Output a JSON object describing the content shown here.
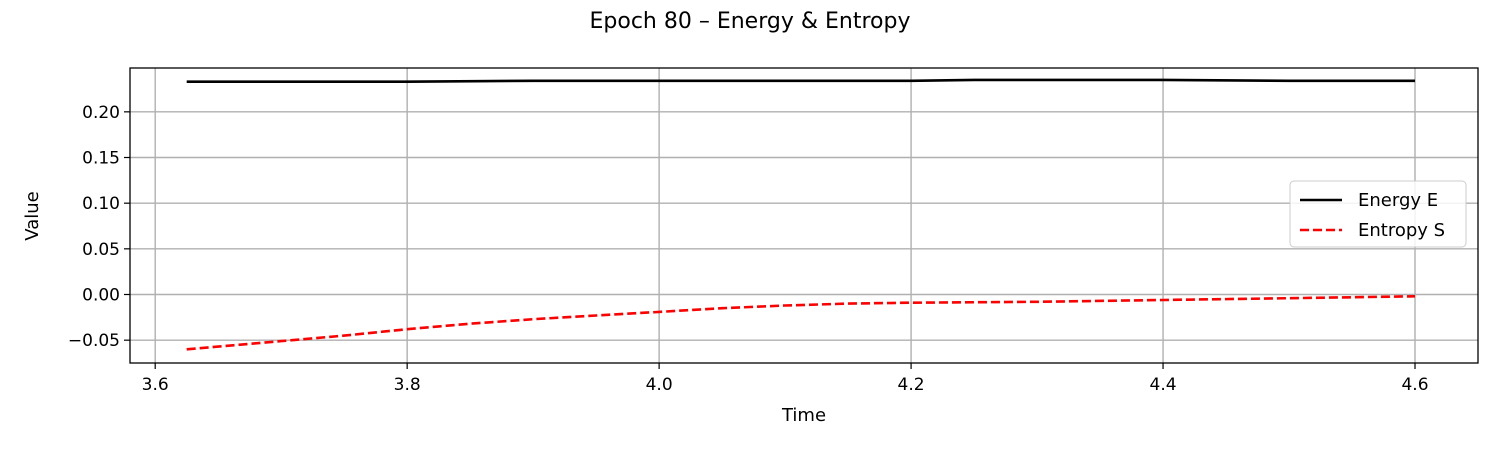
{
  "chart_data": {
    "type": "line",
    "title": "Epoch 80 – Energy & Entropy",
    "xlabel": "Time",
    "ylabel": "Value",
    "xlim": [
      3.58,
      4.65
    ],
    "ylim": [
      -0.075,
      0.248
    ],
    "xticks": [
      3.6,
      3.8,
      4.0,
      4.2,
      4.4,
      4.6
    ],
    "xtick_labels": [
      "3.6",
      "3.8",
      "4.0",
      "4.2",
      "4.4",
      "4.6"
    ],
    "yticks": [
      -0.05,
      0.0,
      0.05,
      0.1,
      0.15,
      0.2
    ],
    "ytick_labels": [
      "−0.05",
      "0.00",
      "0.05",
      "0.10",
      "0.15",
      "0.20"
    ],
    "grid": true,
    "legend_position": "center-right",
    "series": [
      {
        "name": "Energy E",
        "color": "#000000",
        "style": "solid",
        "x": [
          3.625,
          3.7,
          3.8,
          3.9,
          4.0,
          4.1,
          4.2,
          4.25,
          4.3,
          4.4,
          4.5,
          4.6
        ],
        "y": [
          0.233,
          0.233,
          0.233,
          0.234,
          0.234,
          0.234,
          0.234,
          0.235,
          0.235,
          0.235,
          0.234,
          0.234
        ]
      },
      {
        "name": "Entropy S",
        "color": "#ff0000",
        "style": "dashed",
        "x": [
          3.625,
          3.65,
          3.7,
          3.75,
          3.8,
          3.85,
          3.9,
          3.95,
          4.0,
          4.05,
          4.1,
          4.15,
          4.2,
          4.3,
          4.4,
          4.5,
          4.6
        ],
        "y": [
          -0.06,
          -0.057,
          -0.051,
          -0.045,
          -0.038,
          -0.032,
          -0.027,
          -0.023,
          -0.019,
          -0.015,
          -0.012,
          -0.01,
          -0.009,
          -0.008,
          -0.006,
          -0.004,
          -0.002
        ]
      }
    ]
  }
}
